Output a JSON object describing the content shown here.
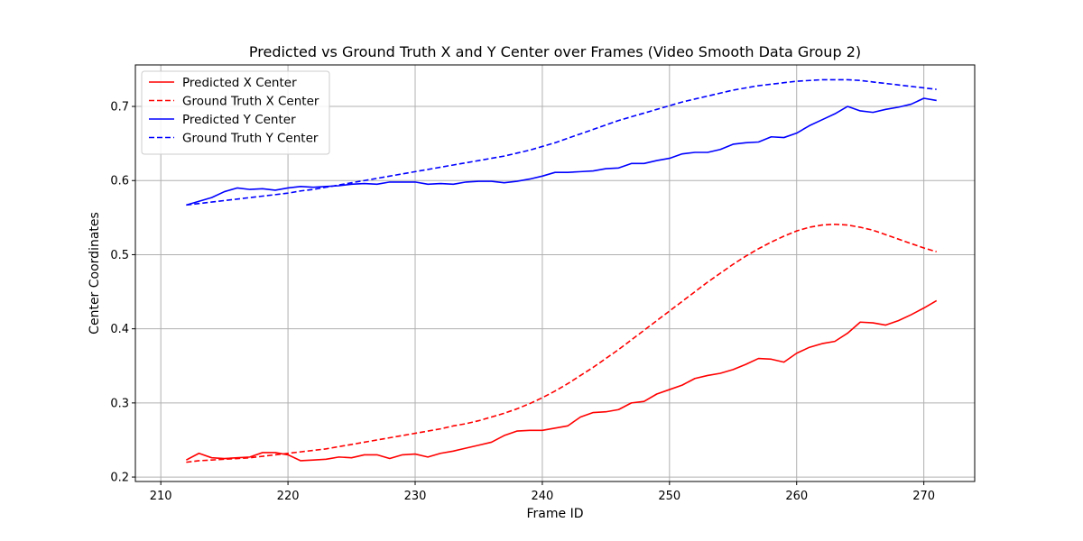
{
  "chart_data": {
    "type": "line",
    "title": "Predicted vs Ground Truth X and Y Center over Frames (Video Smooth Data Group 2)",
    "xlabel": "Frame ID",
    "ylabel": "Center Coordinates",
    "xlim": [
      208,
      274
    ],
    "ylim": [
      0.194,
      0.756
    ],
    "xticks": [
      210,
      220,
      230,
      240,
      250,
      260,
      270
    ],
    "yticks": [
      0.2,
      0.3,
      0.4,
      0.5,
      0.6,
      0.7
    ],
    "ytick_labels": [
      "0.2",
      "0.3",
      "0.4",
      "0.5",
      "0.6",
      "0.7"
    ],
    "grid": true,
    "legend_position": "top-left",
    "x": [
      212,
      213,
      214,
      215,
      216,
      217,
      218,
      219,
      220,
      221,
      222,
      223,
      224,
      225,
      226,
      227,
      228,
      229,
      230,
      231,
      232,
      233,
      234,
      235,
      236,
      237,
      238,
      239,
      240,
      241,
      242,
      243,
      244,
      245,
      246,
      247,
      248,
      249,
      250,
      251,
      252,
      253,
      254,
      255,
      256,
      257,
      258,
      259,
      260,
      261,
      262,
      263,
      264,
      265,
      266,
      267,
      268,
      269,
      270,
      271
    ],
    "series": [
      {
        "name": "Predicted X Center",
        "color": "#ff0000",
        "dashed": false,
        "values": [
          0.223,
          0.232,
          0.226,
          0.225,
          0.226,
          0.227,
          0.233,
          0.233,
          0.23,
          0.222,
          0.223,
          0.224,
          0.227,
          0.226,
          0.23,
          0.23,
          0.225,
          0.23,
          0.231,
          0.227,
          0.232,
          0.235,
          0.239,
          0.243,
          0.247,
          0.256,
          0.262,
          0.263,
          0.263,
          0.266,
          0.269,
          0.281,
          0.287,
          0.288,
          0.291,
          0.3,
          0.302,
          0.312,
          0.318,
          0.324,
          0.333,
          0.337,
          0.34,
          0.345,
          0.352,
          0.36,
          0.359,
          0.355,
          0.367,
          0.375,
          0.38,
          0.383,
          0.394,
          0.409,
          0.408,
          0.405,
          0.411,
          0.419,
          0.428,
          0.438
        ]
      },
      {
        "name": "Ground Truth X Center",
        "color": "#ff0000",
        "dashed": true,
        "values": [
          0.22,
          0.222,
          0.223,
          0.224,
          0.225,
          0.226,
          0.228,
          0.23,
          0.232,
          0.234,
          0.236,
          0.238,
          0.241,
          0.244,
          0.247,
          0.25,
          0.253,
          0.256,
          0.259,
          0.262,
          0.265,
          0.269,
          0.272,
          0.276,
          0.281,
          0.286,
          0.292,
          0.299,
          0.307,
          0.316,
          0.326,
          0.337,
          0.348,
          0.36,
          0.372,
          0.385,
          0.398,
          0.411,
          0.424,
          0.437,
          0.45,
          0.463,
          0.475,
          0.487,
          0.498,
          0.508,
          0.517,
          0.525,
          0.532,
          0.537,
          0.54,
          0.541,
          0.54,
          0.537,
          0.533,
          0.527,
          0.521,
          0.515,
          0.509,
          0.504
        ]
      },
      {
        "name": "Predicted Y Center",
        "color": "#0000ff",
        "dashed": false,
        "values": [
          0.567,
          0.572,
          0.577,
          0.585,
          0.59,
          0.588,
          0.589,
          0.587,
          0.59,
          0.592,
          0.591,
          0.592,
          0.593,
          0.595,
          0.596,
          0.595,
          0.598,
          0.598,
          0.598,
          0.595,
          0.596,
          0.595,
          0.598,
          0.599,
          0.599,
          0.597,
          0.599,
          0.602,
          0.606,
          0.611,
          0.611,
          0.612,
          0.613,
          0.616,
          0.617,
          0.623,
          0.623,
          0.627,
          0.63,
          0.636,
          0.638,
          0.638,
          0.642,
          0.649,
          0.651,
          0.652,
          0.659,
          0.658,
          0.664,
          0.674,
          0.682,
          0.69,
          0.7,
          0.694,
          0.692,
          0.696,
          0.699,
          0.703,
          0.711,
          0.708
        ]
      },
      {
        "name": "Ground Truth Y Center",
        "color": "#0000ff",
        "dashed": true,
        "values": [
          0.567,
          0.569,
          0.571,
          0.573,
          0.575,
          0.577,
          0.579,
          0.581,
          0.583,
          0.586,
          0.588,
          0.591,
          0.594,
          0.597,
          0.6,
          0.603,
          0.606,
          0.609,
          0.612,
          0.615,
          0.618,
          0.621,
          0.624,
          0.627,
          0.63,
          0.633,
          0.637,
          0.641,
          0.646,
          0.651,
          0.657,
          0.663,
          0.669,
          0.675,
          0.681,
          0.686,
          0.691,
          0.696,
          0.701,
          0.706,
          0.71,
          0.714,
          0.718,
          0.722,
          0.725,
          0.728,
          0.73,
          0.732,
          0.734,
          0.735,
          0.736,
          0.736,
          0.736,
          0.735,
          0.733,
          0.731,
          0.729,
          0.727,
          0.725,
          0.723
        ]
      }
    ]
  }
}
